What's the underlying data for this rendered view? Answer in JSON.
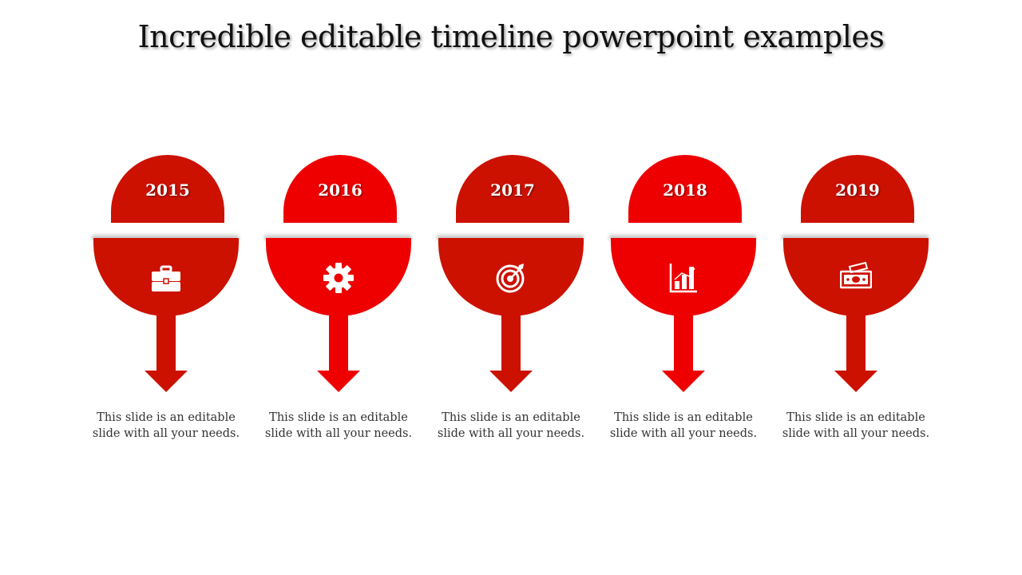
{
  "title": "Incredible editable timeline powerpoint examples",
  "colors": {
    "dark_red": "#cc1100",
    "bright_red": "#ee0000"
  },
  "milestones": [
    {
      "year": "2015",
      "icon": "briefcase-icon",
      "color": "#cc1100",
      "text": "This slide is an editable slide with all your needs."
    },
    {
      "year": "2016",
      "icon": "gear-icon",
      "color": "#ee0000",
      "text": "This slide is an editable slide with all your needs."
    },
    {
      "year": "2017",
      "icon": "target-icon",
      "color": "#cc1100",
      "text": "This slide is an editable slide with all your needs."
    },
    {
      "year": "2018",
      "icon": "bar-chart-icon",
      "color": "#ee0000",
      "text": "This slide is an editable slide with all your needs."
    },
    {
      "year": "2019",
      "icon": "money-icon",
      "color": "#cc1100",
      "text": "This slide is an editable slide with all your needs."
    }
  ]
}
